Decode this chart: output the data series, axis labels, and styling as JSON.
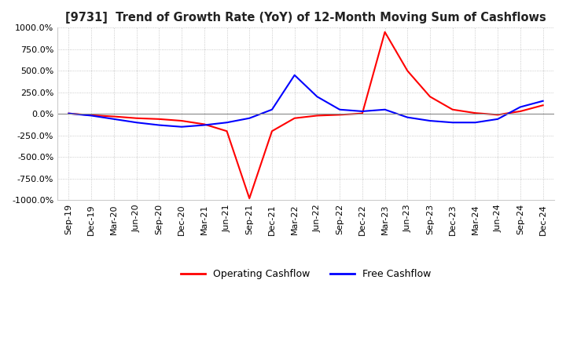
{
  "title": "[9731]  Trend of Growth Rate (YoY) of 12-Month Moving Sum of Cashflows",
  "ylim": [
    -1000,
    1000
  ],
  "yticks": [
    -1000,
    -750,
    -500,
    -250,
    0,
    250,
    500,
    750,
    1000
  ],
  "background_color": "#ffffff",
  "grid_color": "#bbbbbb",
  "legend": [
    "Operating Cashflow",
    "Free Cashflow"
  ],
  "legend_colors": [
    "#ff0000",
    "#0000ff"
  ],
  "x_labels": [
    "Sep-19",
    "Dec-19",
    "Mar-20",
    "Jun-20",
    "Sep-20",
    "Dec-20",
    "Mar-21",
    "Jun-21",
    "Sep-21",
    "Dec-21",
    "Mar-22",
    "Jun-22",
    "Sep-22",
    "Dec-22",
    "Mar-23",
    "Jun-23",
    "Sep-23",
    "Dec-23",
    "Mar-24",
    "Jun-24",
    "Sep-24",
    "Dec-24"
  ],
  "operating_cashflow": [
    5,
    -15,
    -30,
    -50,
    -60,
    -80,
    -120,
    -200,
    -980,
    -200,
    -50,
    -20,
    -10,
    5,
    950,
    500,
    200,
    50,
    10,
    -10,
    30,
    100
  ],
  "free_cashflow": [
    5,
    -20,
    -60,
    -100,
    -130,
    -150,
    -130,
    -100,
    -50,
    50,
    450,
    200,
    50,
    30,
    50,
    -40,
    -80,
    -100,
    -100,
    -60,
    80,
    150
  ]
}
